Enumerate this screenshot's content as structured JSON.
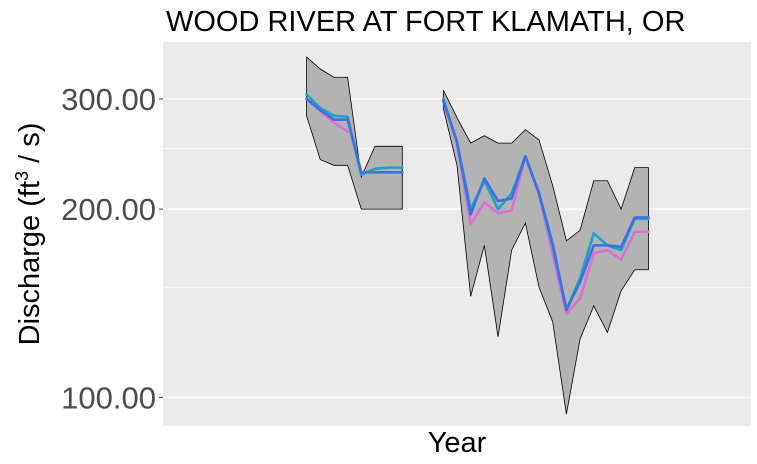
{
  "chart_data": {
    "type": "line",
    "title": "WOOD RIVER AT FORT KLAMATH, OR",
    "xlabel": "Year",
    "ylabel_parts": [
      "Discharge (ft",
      "3",
      " / s)"
    ],
    "y_scale": "log",
    "ylim": [
      90,
      370
    ],
    "xlim": [
      1937.5,
      1980.5
    ],
    "y_ticks": [
      {
        "value": 100,
        "label": "100.00"
      },
      {
        "value": 200,
        "label": "200.00"
      },
      {
        "value": 300,
        "label": "300.00"
      }
    ],
    "y_minor_ticks": [
      150,
      250
    ],
    "x_tick_labels_shown": false,
    "grid": true,
    "colors": {
      "panel": "#ebebeb",
      "grid": "#ffffff",
      "band": "#b3b3b3",
      "magenta": "#da70d6",
      "teal": "#1aa3c4",
      "blue": "#3f6fe0"
    },
    "band": {
      "segments": [
        {
          "x": [
            1948,
            1949,
            1950,
            1951,
            1952,
            1953,
            1954,
            1955
          ],
          "upper": [
            350,
            335,
            325,
            325,
            225,
            252,
            252,
            252
          ],
          "lower": [
            282,
            240,
            235,
            235,
            200,
            200,
            200,
            200
          ]
        },
        {
          "x": [
            1958,
            1959,
            1960,
            1961,
            1962,
            1963,
            1964,
            1965,
            1966,
            1967,
            1968,
            1969,
            1970,
            1971,
            1972,
            1973
          ],
          "upper": [
            310,
            280,
            255,
            262,
            255,
            255,
            268,
            258,
            218,
            178,
            185,
            222,
            222,
            200,
            233,
            233
          ],
          "lower": [
            290,
            235,
            145,
            175,
            125,
            172,
            190,
            150,
            132,
            94,
            124,
            140,
            127,
            148,
            160,
            160
          ]
        }
      ]
    },
    "series": [
      {
        "color": "#da70d6",
        "segments": [
          {
            "x": [
              1948,
              1949,
              1950,
              1951
            ],
            "y": [
              300,
              287,
              275,
              266
            ]
          },
          {
            "x": [
              1958,
              1959,
              1960,
              1961,
              1962,
              1963,
              1964,
              1965,
              1966,
              1967,
              1968,
              1969,
              1970,
              1971,
              1972,
              1973
            ],
            "y": [
              298,
              255,
              189,
              205,
              197,
              199,
              243,
              211,
              169,
              136,
              144,
              170,
              172,
              166,
              184,
              184
            ]
          }
        ]
      },
      {
        "color": "#1aa3c4",
        "segments": [
          {
            "x": [
              1948,
              1949,
              1950,
              1951,
              1952,
              1953,
              1954,
              1955
            ],
            "y": [
              305,
              290,
              282,
              281,
              227,
              232,
              233,
              233
            ]
          },
          {
            "x": [
              1958,
              1959,
              1960,
              1961,
              1962,
              1963,
              1964,
              1965,
              1966,
              1967,
              1968,
              1969,
              1970,
              1971,
              1972,
              1973
            ],
            "y": [
              300,
              256,
              200,
              222,
              200,
              212,
              243,
              212,
              174,
              138,
              155,
              183,
              175,
              172,
              193,
              193
            ]
          }
        ]
      },
      {
        "color": "#3f6fe0",
        "segments": [
          {
            "x": [
              1948,
              1949,
              1950,
              1951,
              1952,
              1953,
              1954,
              1955
            ],
            "y": [
              300,
              288,
              278,
              278,
              229,
              229,
              229,
              229
            ]
          },
          {
            "x": [
              1958,
              1959,
              1960,
              1961,
              1962,
              1963,
              1964,
              1965,
              1966,
              1967,
              1968,
              1969,
              1970,
              1971,
              1972,
              1973
            ],
            "y": [
              298,
              256,
              196,
              224,
              206,
              208,
              243,
              212,
              176,
              138,
              153,
              175,
              175,
              174,
              194,
              194
            ]
          }
        ]
      }
    ]
  }
}
